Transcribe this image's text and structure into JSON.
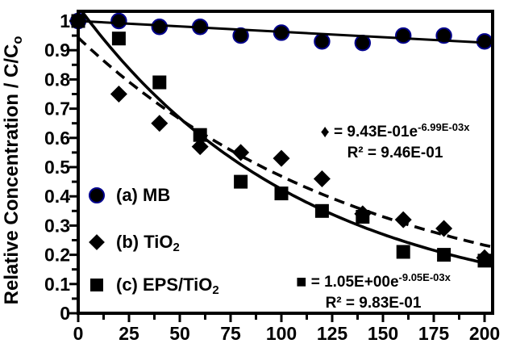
{
  "chart_data": {
    "type": "scatter",
    "title": "",
    "xlabel": "",
    "ylabel": "Relative Concentration / C/Co",
    "xlim": [
      0,
      205
    ],
    "ylim": [
      0,
      1.04
    ],
    "grid": false,
    "legend_position": "inside-left-middle",
    "x": [
      0,
      20,
      40,
      60,
      80,
      100,
      120,
      140,
      160,
      180,
      200
    ],
    "series": [
      {
        "name": "(a) MB",
        "marker": "circle",
        "values": [
          1.0,
          1.0,
          0.98,
          0.98,
          0.95,
          0.96,
          0.93,
          0.925,
          0.95,
          0.95,
          0.93
        ],
        "fit": {
          "kind": "linear",
          "intercept": 1.0,
          "slope": -0.00037,
          "style": "solid"
        }
      },
      {
        "name": "(b) TiO2",
        "marker": "diamond",
        "values": [
          1.0,
          0.75,
          0.65,
          0.57,
          0.55,
          0.53,
          0.46,
          0.34,
          0.32,
          0.29,
          0.19
        ],
        "fit": {
          "kind": "exponential",
          "a": 0.943,
          "k": -0.00699,
          "style": "dashed",
          "equation": "y = 9.43E-01 e^(-6.99E-03 x)",
          "r2": 0.946
        }
      },
      {
        "name": "(c) EPS/TiO2",
        "marker": "square",
        "values": [
          1.0,
          0.94,
          0.79,
          0.61,
          0.45,
          0.41,
          0.35,
          0.33,
          0.21,
          0.2,
          0.18
        ],
        "fit": {
          "kind": "exponential",
          "a": 1.05,
          "k": -0.00905,
          "style": "solid",
          "equation": "y = 1.05E+00 e^(-9.05E-03 x)",
          "r2": 0.983
        }
      }
    ],
    "x_major_ticks": [
      0,
      25,
      50,
      75,
      100,
      125,
      150,
      175,
      200
    ],
    "x_tick_labels": [
      "0",
      "25",
      "50",
      "75",
      "100",
      "125",
      "150",
      "175",
      "200"
    ],
    "x_minor_step": 12.5,
    "y_major_ticks": [
      0,
      0.1,
      0.2,
      0.3,
      0.4,
      0.5,
      0.6,
      0.7,
      0.8,
      0.9,
      1.0
    ],
    "y_tick_labels": [
      "0",
      "0.1",
      "0.2",
      "0.3",
      "0.4",
      "0.5",
      "0.6",
      "0.7",
      "0.8",
      "0.9",
      "1"
    ],
    "y_minor_step": 0.05,
    "marker_color": "#000000",
    "circle_edge_color": "#00008B",
    "line_color": "#000000"
  },
  "ylabel": {
    "main": "Relative Concentration / C/C",
    "sub": "o"
  },
  "legend": {
    "items": [
      {
        "label_main": "(a) MB",
        "label_sub": ""
      },
      {
        "label_main": "(b) TiO",
        "label_sub": "2"
      },
      {
        "label_main": "(c) EPS/TiO",
        "label_sub": "2"
      }
    ]
  },
  "annotations": {
    "diamond_fit": {
      "marker": "♦",
      "base": " = 9.43E-01e",
      "exponent": "-6.99E-03x",
      "r2": "R² = 9.46E-01"
    },
    "square_fit": {
      "marker": "■",
      "base": " = 1.05E+00e",
      "exponent": "-9.05E-03x",
      "r2": "R² = 9.83E-01"
    }
  }
}
